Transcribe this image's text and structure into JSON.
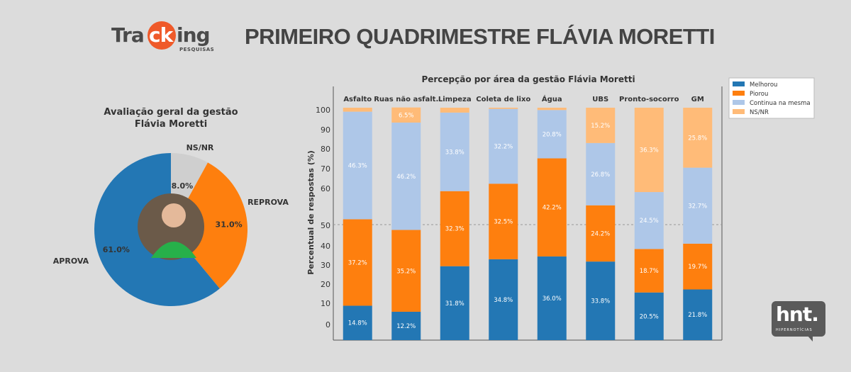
{
  "logo": {
    "part1": "Tra",
    "part2": "ck",
    "part3": "ing",
    "sub": "PESQUISAS"
  },
  "header": {
    "title": "PRIMEIRO QUADRIMESTRE FLÁVIA MORETTI"
  },
  "hnt_logo": {
    "word": "hnt.",
    "sub": "HIPERNOTÍCIAS"
  },
  "colors": {
    "melhorou": "#2377b4",
    "piorou": "#fe7f0e",
    "continua": "#aec7e8",
    "nsnr": "#ffbb78",
    "pie_nsnr": "#cfcfcf"
  },
  "chart_data": [
    {
      "type": "pie",
      "title": "Avaliação geral da gestão\nFlávia Moretti",
      "title_lines": [
        "Avaliação geral da gestão",
        "Flávia Moretti"
      ],
      "slices": [
        {
          "label": "NS/NR",
          "value": 8.0,
          "value_label": "8.0%",
          "color": "#cfcfcf"
        },
        {
          "label": "REPROVA",
          "value": 31.0,
          "value_label": "31.0%",
          "color": "#fe7f0e"
        },
        {
          "label": "APROVA",
          "value": 61.0,
          "value_label": "61.0%",
          "color": "#2377b4"
        }
      ],
      "center_image": "portrait photo"
    },
    {
      "type": "bar",
      "stacked": true,
      "title": "Percepção por área da gestão Flávia Moretti",
      "ylabel": "Percentual de respostas (%)",
      "ylim": [
        0,
        100
      ],
      "yticks": [
        "100",
        "90",
        "80",
        "70",
        "60",
        "50",
        "40",
        "30",
        "20",
        "10",
        "0"
      ],
      "reference_line": 50,
      "legend_position": "top-right",
      "categories": [
        "Asfalto",
        "Ruas não asfalt.",
        "Limpeza",
        "Coleta de lixo",
        "Água",
        "UBS",
        "Pronto-socorro",
        "GM"
      ],
      "series": [
        {
          "name": "Melhorou",
          "color": "#2377b4",
          "values": [
            14.8,
            12.2,
            31.8,
            34.8,
            36.0,
            33.8,
            20.5,
            21.8
          ],
          "labels": [
            "14.8%",
            "12.2%",
            "31.8%",
            "34.8%",
            "36.0%",
            "33.8%",
            "20.5%",
            "21.8%"
          ]
        },
        {
          "name": "Piorou",
          "color": "#fe7f0e",
          "values": [
            37.2,
            35.2,
            32.3,
            32.5,
            42.2,
            24.2,
            18.7,
            19.7
          ],
          "labels": [
            "37.2%",
            "35.2%",
            "32.3%",
            "32.5%",
            "42.2%",
            "24.2%",
            "18.7%",
            "19.7%"
          ]
        },
        {
          "name": "Continua na mesma",
          "color": "#aec7e8",
          "values": [
            46.3,
            46.2,
            33.8,
            32.2,
            20.8,
            26.8,
            24.5,
            32.7
          ],
          "labels": [
            "46.3%",
            "46.2%",
            "33.8%",
            "32.2%",
            "20.8%",
            "26.8%",
            "24.5%",
            "32.7%"
          ]
        },
        {
          "name": "NS/NR",
          "color": "#ffbb78",
          "values": [
            1.7,
            6.5,
            2.1,
            0.5,
            1.0,
            15.2,
            36.3,
            25.8
          ],
          "labels": [
            "",
            "6.5%",
            "",
            "",
            "",
            "15.2%",
            "36.3%",
            "25.8%"
          ]
        }
      ]
    }
  ]
}
